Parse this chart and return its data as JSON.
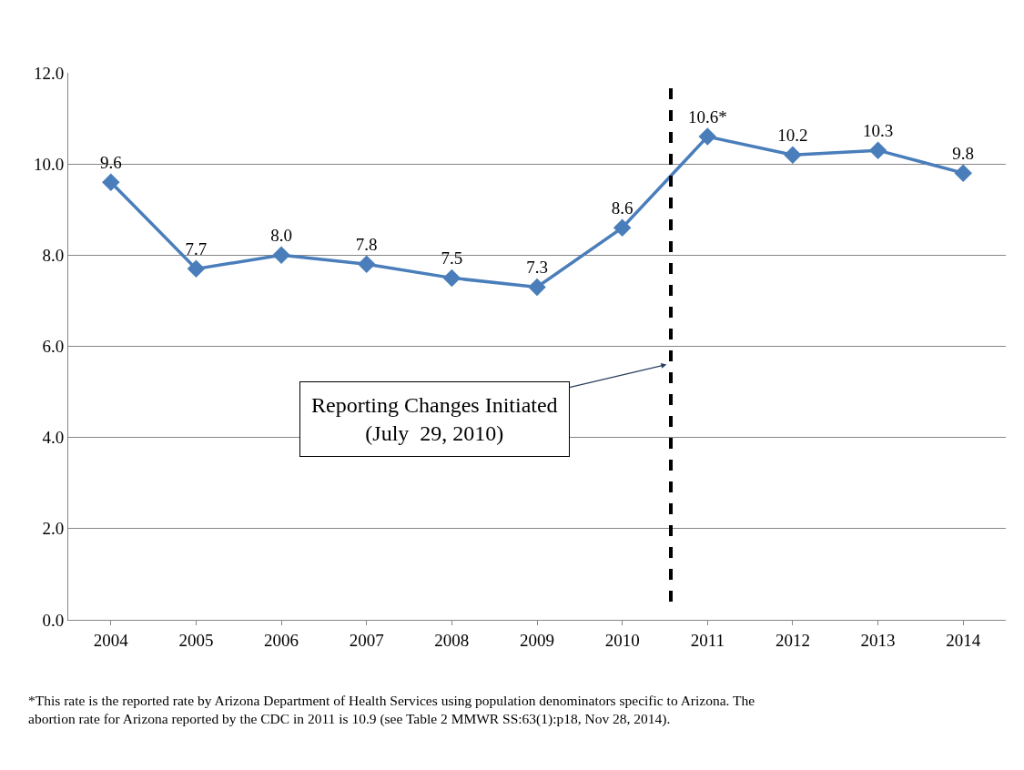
{
  "chart_data": {
    "type": "line",
    "x": [
      2004,
      2005,
      2006,
      2007,
      2008,
      2009,
      2010,
      2011,
      2012,
      2013,
      2014
    ],
    "xlim": [
      2003.5,
      2014.5
    ],
    "xticks": [
      2004,
      2005,
      2006,
      2007,
      2008,
      2009,
      2010,
      2011,
      2012,
      2013,
      2014
    ],
    "ylim": [
      0,
      12
    ],
    "yticks": [
      {
        "value": 0,
        "label": "0.0"
      },
      {
        "value": 2,
        "label": "2.0"
      },
      {
        "value": 4,
        "label": "4.0"
      },
      {
        "value": 6,
        "label": "6.0"
      },
      {
        "value": 8,
        "label": "8.0"
      },
      {
        "value": 10,
        "label": "10.0"
      },
      {
        "value": 12,
        "label": "12.0"
      }
    ],
    "series": [
      {
        "color": "#4a7ebb",
        "values": [
          9.6,
          7.7,
          8.0,
          7.8,
          7.5,
          7.3,
          8.6,
          10.6,
          10.2,
          10.3,
          9.8
        ],
        "value_labels": [
          "9.6",
          "7.7",
          "8.0",
          "7.8",
          "7.5",
          "7.3",
          "8.6",
          "10.6*",
          "10.2",
          "10.3",
          "9.8"
        ]
      }
    ],
    "marker": "diamond",
    "grid": "y",
    "ref_lines": [
      {
        "axis": "x",
        "value": 2010.57,
        "label": "Reporting Changes Initiated\n(July  29, 2010)",
        "color": "#000000",
        "line_style": "dashed"
      }
    ],
    "annotations": [
      "*This rate is the reported rate by Arizona Department of Health Services using population denominators specific to Arizona. The\nabortion rate for Arizona reported by the CDC in 2011 is 10.9 (see Table 2 MMWR SS:63(1):p18, Nov 28, 2014)."
    ]
  }
}
